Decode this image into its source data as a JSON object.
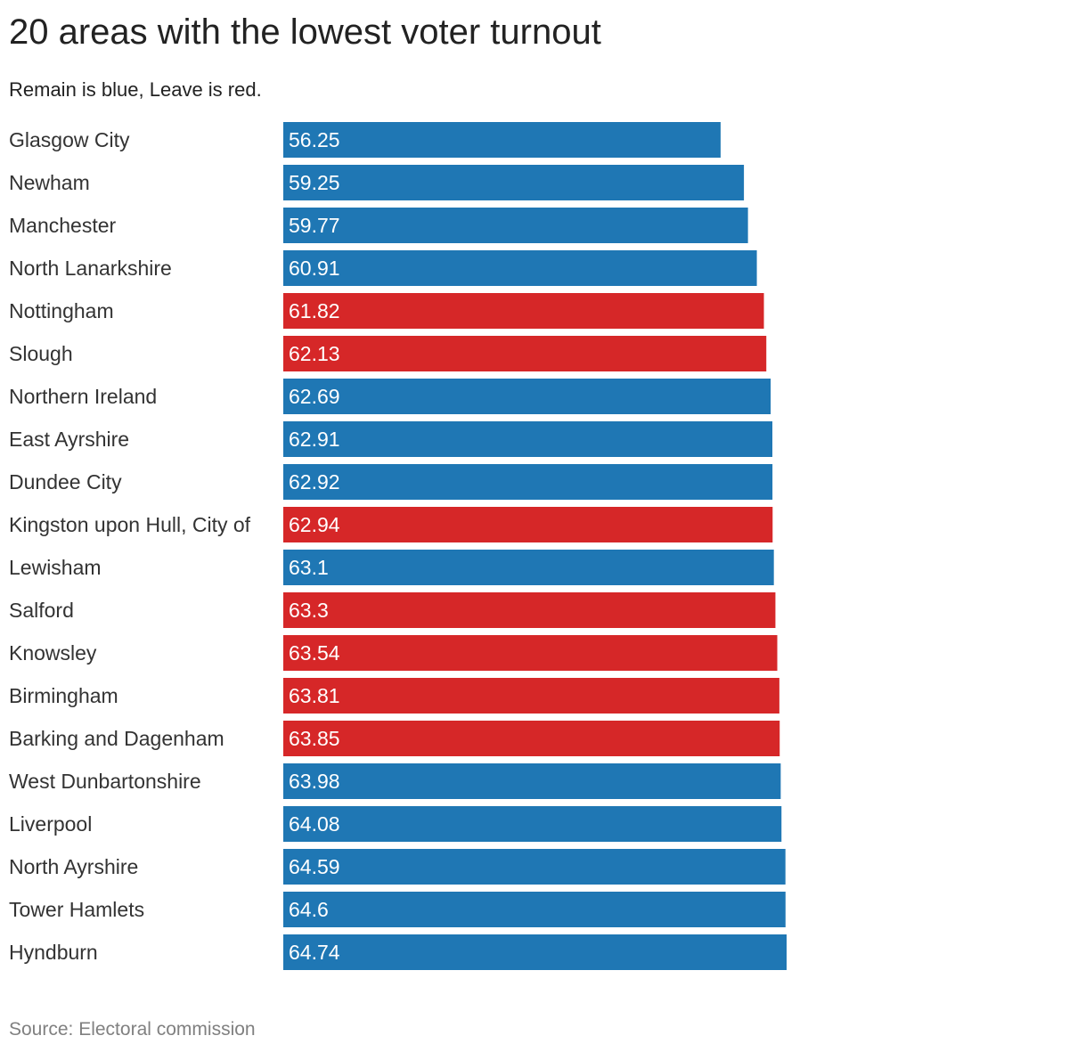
{
  "title": "20 areas with the lowest voter turnout",
  "subtitle": "Remain is blue, Leave is red.",
  "source": "Source: Electoral commission",
  "colors": {
    "remain": "#1f77b4",
    "leave": "#d62728"
  },
  "chart_data": {
    "type": "bar",
    "orientation": "horizontal",
    "title": "20 areas with the lowest voter turnout",
    "subtitle": "Remain is blue, Leave is red.",
    "categories": [
      "Glasgow City",
      "Newham",
      "Manchester",
      "North Lanarkshire",
      "Nottingham",
      "Slough",
      "Northern Ireland",
      "East Ayrshire",
      "Dundee City",
      "Kingston upon Hull, City of",
      "Lewisham",
      "Salford",
      "Knowsley",
      "Birmingham",
      "Barking and Dagenham",
      "West Dunbartonshire",
      "Liverpool",
      "North Ayrshire",
      "Tower Hamlets",
      "Hyndburn"
    ],
    "values": [
      56.25,
      59.25,
      59.77,
      60.91,
      61.82,
      62.13,
      62.69,
      62.91,
      62.92,
      62.94,
      63.1,
      63.3,
      63.54,
      63.81,
      63.85,
      63.98,
      64.08,
      64.59,
      64.6,
      64.74
    ],
    "value_labels": [
      "56.25",
      "59.25",
      "59.77",
      "60.91",
      "61.82",
      "62.13",
      "62.69",
      "62.91",
      "62.92",
      "62.94",
      "63.1",
      "63.3",
      "63.54",
      "63.81",
      "63.85",
      "63.98",
      "64.08",
      "64.59",
      "64.6",
      "64.74"
    ],
    "result": [
      "remain",
      "remain",
      "remain",
      "remain",
      "leave",
      "leave",
      "remain",
      "remain",
      "remain",
      "leave",
      "remain",
      "leave",
      "leave",
      "leave",
      "leave",
      "remain",
      "remain",
      "remain",
      "remain",
      "remain"
    ],
    "xlim": [
      0,
      64.74
    ],
    "grid": false,
    "legend": "none"
  }
}
